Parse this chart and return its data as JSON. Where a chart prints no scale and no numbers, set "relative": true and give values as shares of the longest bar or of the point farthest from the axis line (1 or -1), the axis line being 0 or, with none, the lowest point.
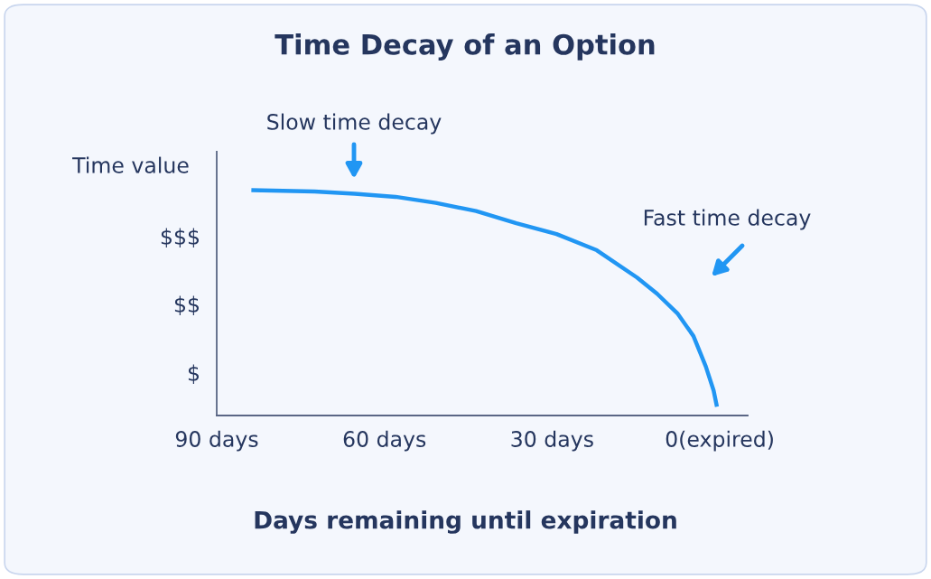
{
  "chart_data": {
    "type": "line",
    "title": "Time Decay of an Option",
    "xlabel": "Days remaining until expiration",
    "ylabel": "Time value",
    "relative": true,
    "x": [
      83.8,
      72.5,
      65.3,
      58.0,
      50.8,
      43.6,
      36.4,
      29.2,
      22.0,
      14.8,
      11.2,
      7.5,
      4.7,
      2.5,
      1.1,
      0.5
    ],
    "series": [
      {
        "color": "#2196f3",
        "values": [
          1,
          0.994,
          0.984,
          0.97,
          0.943,
          0.907,
          0.853,
          0.805,
          0.733,
          0.612,
          0.54,
          0.451,
          0.352,
          0.218,
          0.111,
          0.039
        ]
      }
    ],
    "xlim": [
      90,
      -5
    ],
    "xticks": [
      {
        "value": 90,
        "label": "90 days"
      },
      {
        "value": 60,
        "label": "60 days"
      },
      {
        "value": 30,
        "label": "30 days"
      },
      {
        "value": 0,
        "label": "0(expired)"
      }
    ],
    "annotations": [
      "Slow time decay",
      "Fast time decay",
      "$",
      "$$",
      "$$$"
    ],
    "grid": false,
    "legend": false
  }
}
